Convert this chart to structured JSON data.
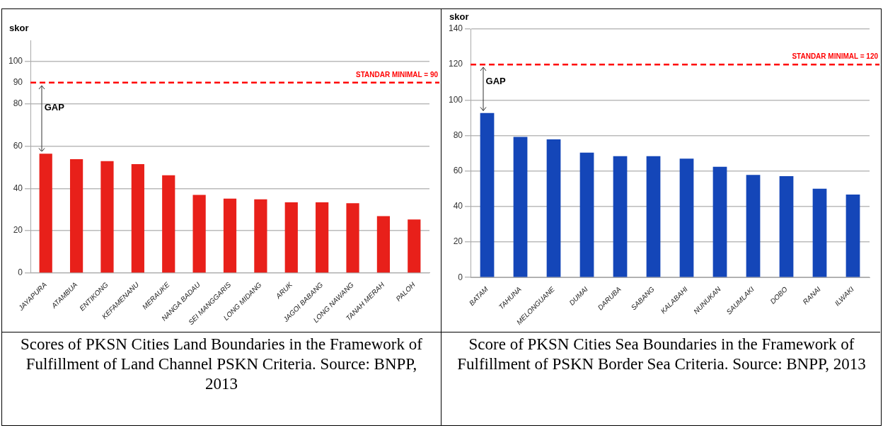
{
  "chart_data": [
    {
      "type": "bar",
      "ylabel": "skor",
      "categories": [
        "JAYAPURA",
        "ATAMBUA",
        "ENTIKONG",
        "KEFAMENANU",
        "MERAUKE",
        "NANGA BADAU",
        "SEI MANGGARIS",
        "LONG MIDANG",
        "ARUK",
        "JAGOI BABANG",
        "LONG NAWANG",
        "TANAH MERAH",
        "PALOH"
      ],
      "values": [
        56.4,
        53.8,
        52.9,
        51.5,
        46.2,
        36.9,
        35.2,
        34.8,
        33.4,
        33.4,
        33.0,
        26.9,
        25.3
      ],
      "color": "#e8201a",
      "ylim": [
        0,
        110
      ],
      "yticks": [
        0,
        20,
        40,
        60,
        80,
        90,
        100
      ],
      "grid": "y",
      "ref_lines": [
        {
          "axis": "y",
          "value": 90,
          "label": "STANDAR MINIMAL = 90",
          "color": "#ff0000",
          "line_style": "dashed"
        }
      ],
      "annotations": [
        "GAP",
        "Scores of PKSN Cities Land Boundaries in the Framework of Fulfillment of Land Channel PSKN Criteria. Source: BNPP, 2013"
      ]
    },
    {
      "type": "bar",
      "ylabel": "skor",
      "categories": [
        "BATAM",
        "TAHUNA",
        "MELONGUANE",
        "DUMAI",
        "DARUBA",
        "SABANG",
        "KALABAHI",
        "NUNUKAN",
        "SAUMLAKI",
        "DOBO",
        "RANAI",
        "ILWAKI"
      ],
      "values": [
        92.7,
        79.2,
        77.8,
        70.3,
        68.4,
        68.4,
        67.0,
        62.4,
        57.8,
        57.1,
        50.0,
        46.7
      ],
      "color": "#1446b8",
      "ylim": [
        0,
        140
      ],
      "yticks": [
        0,
        20,
        40,
        60,
        80,
        100,
        120,
        140
      ],
      "grid": "y",
      "ref_lines": [
        {
          "axis": "y",
          "value": 120,
          "label": "STANDAR MINIMAL = 120",
          "color": "#ff0000",
          "line_style": "dashed"
        }
      ],
      "annotations": [
        {
          "text": "GAP",
          "x": "BATAM",
          "y": 92.7
        },
        "Score of PKSN Cities Sea Boundaries in the Framework of Fulfillment of PSKN Border Sea Criteria. Source: BNPP, 2013"
      ]
    }
  ]
}
